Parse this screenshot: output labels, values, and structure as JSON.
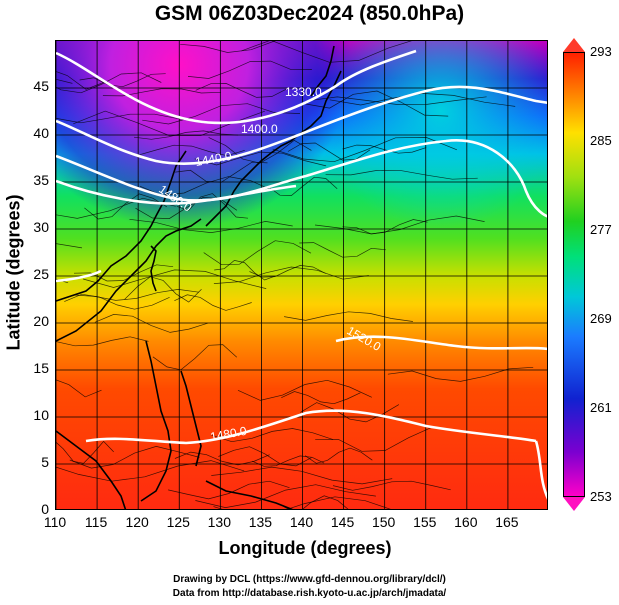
{
  "title": "GSM 06Z03Dec2024 (850.0hPa)",
  "chart_data": {
    "type": "heatmap",
    "title": "GSM 06Z03Dec2024 (850.0hPa)",
    "xlabel": "Longitude (degrees)",
    "ylabel": "Latitude  (degrees)",
    "xlim": [
      110,
      170
    ],
    "ylim": [
      0,
      50
    ],
    "xticks": [
      "110",
      "115",
      "120",
      "125",
      "130",
      "135",
      "140",
      "145",
      "150",
      "155",
      "160",
      "165"
    ],
    "yticks": [
      "0",
      "5",
      "10",
      "15",
      "20",
      "25",
      "30",
      "35",
      "40",
      "45"
    ],
    "grid": true,
    "colorbar": {
      "min": 253,
      "max": 293,
      "ticks": [
        "253",
        "261",
        "269",
        "277",
        "285",
        "293"
      ]
    },
    "contour_labels": [
      "1330.0",
      "1400.0",
      "1440.0",
      "1480.0",
      "1520.0",
      "1480.0"
    ],
    "overlays": [
      "temperature shading",
      "geopotential height contours",
      "wind streamlines",
      "coastlines"
    ]
  },
  "footer": {
    "line1": "Drawing by DCL (https://www.gfd-dennou.org/library/dcl/)",
    "line2": "Data from http://database.rish.kyoto-u.ac.jp/arch/jmadata/"
  }
}
